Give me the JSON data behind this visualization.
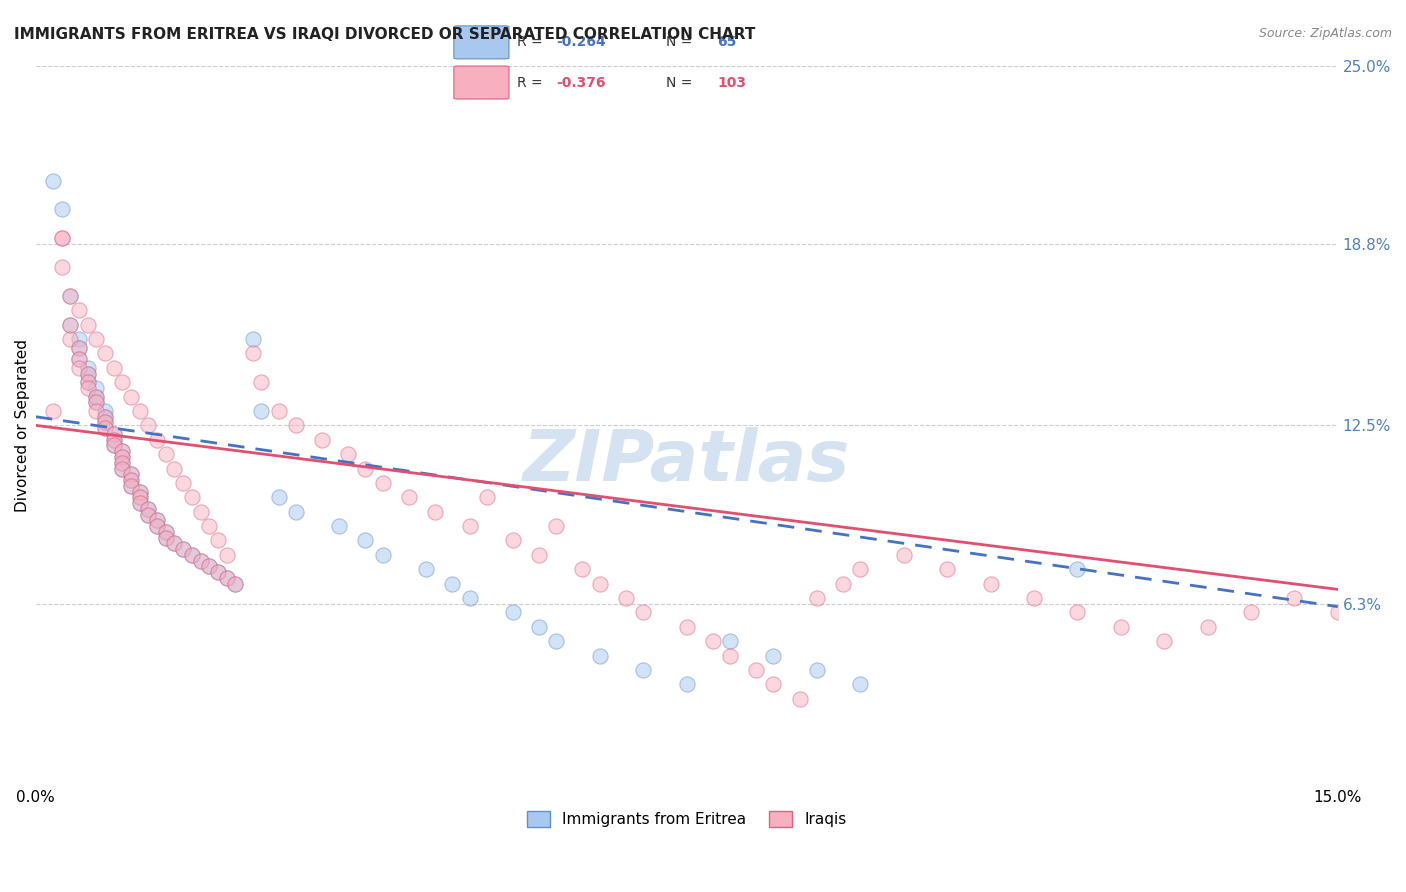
{
  "title": "IMMIGRANTS FROM ERITREA VS IRAQI DIVORCED OR SEPARATED CORRELATION CHART",
  "source": "Source: ZipAtlas.com",
  "xlabel_ticks": [
    "0.0%",
    "15.0%"
  ],
  "ylabel_ticks": [
    "6.3%",
    "12.5%",
    "18.8%",
    "25.0%"
  ],
  "ylabel_label": "Divorced or Separated",
  "xmin": 0.0,
  "xmax": 0.15,
  "ymin": 0.0,
  "ymax": 0.25,
  "ytick_positions": [
    0.063,
    0.125,
    0.188,
    0.25
  ],
  "ytick_labels": [
    "6.3%",
    "12.5%",
    "18.8%",
    "25.0%"
  ],
  "xtick_positions": [
    0.0,
    0.15
  ],
  "xtick_labels": [
    "0.0%",
    "15.0%"
  ],
  "legend_entries": [
    {
      "label": "R = -0.264   N =  65",
      "color": "#7ab0e0"
    },
    {
      "label": "R = -0.376   N = 103",
      "color": "#f08080"
    }
  ],
  "scatter_eritrea": {
    "color": "#a8c8f0",
    "edge_color": "#6090c8",
    "alpha": 0.5,
    "size": 120,
    "x": [
      0.002,
      0.003,
      0.004,
      0.004,
      0.005,
      0.005,
      0.005,
      0.006,
      0.006,
      0.006,
      0.007,
      0.007,
      0.007,
      0.008,
      0.008,
      0.008,
      0.008,
      0.009,
      0.009,
      0.009,
      0.01,
      0.01,
      0.01,
      0.01,
      0.011,
      0.011,
      0.011,
      0.012,
      0.012,
      0.012,
      0.013,
      0.013,
      0.014,
      0.014,
      0.015,
      0.015,
      0.016,
      0.017,
      0.018,
      0.019,
      0.02,
      0.021,
      0.022,
      0.023,
      0.025,
      0.026,
      0.028,
      0.03,
      0.035,
      0.038,
      0.04,
      0.045,
      0.048,
      0.05,
      0.055,
      0.058,
      0.06,
      0.065,
      0.07,
      0.075,
      0.08,
      0.085,
      0.09,
      0.095,
      0.12
    ],
    "y": [
      0.21,
      0.2,
      0.17,
      0.16,
      0.155,
      0.152,
      0.148,
      0.145,
      0.143,
      0.14,
      0.138,
      0.135,
      0.133,
      0.13,
      0.128,
      0.126,
      0.124,
      0.122,
      0.12,
      0.118,
      0.116,
      0.114,
      0.112,
      0.11,
      0.108,
      0.106,
      0.104,
      0.102,
      0.1,
      0.098,
      0.096,
      0.094,
      0.092,
      0.09,
      0.088,
      0.086,
      0.084,
      0.082,
      0.08,
      0.078,
      0.076,
      0.074,
      0.072,
      0.07,
      0.155,
      0.13,
      0.1,
      0.095,
      0.09,
      0.085,
      0.08,
      0.075,
      0.07,
      0.065,
      0.06,
      0.055,
      0.05,
      0.045,
      0.04,
      0.035,
      0.05,
      0.045,
      0.04,
      0.035,
      0.075
    ]
  },
  "scatter_iraqis": {
    "color": "#f8b0c0",
    "edge_color": "#e06080",
    "alpha": 0.5,
    "size": 120,
    "x": [
      0.002,
      0.003,
      0.003,
      0.004,
      0.004,
      0.005,
      0.005,
      0.005,
      0.006,
      0.006,
      0.006,
      0.007,
      0.007,
      0.007,
      0.008,
      0.008,
      0.008,
      0.009,
      0.009,
      0.009,
      0.01,
      0.01,
      0.01,
      0.01,
      0.011,
      0.011,
      0.011,
      0.012,
      0.012,
      0.012,
      0.013,
      0.013,
      0.014,
      0.014,
      0.015,
      0.015,
      0.016,
      0.017,
      0.018,
      0.019,
      0.02,
      0.021,
      0.022,
      0.023,
      0.025,
      0.026,
      0.028,
      0.03,
      0.033,
      0.036,
      0.038,
      0.04,
      0.043,
      0.046,
      0.05,
      0.052,
      0.055,
      0.058,
      0.06,
      0.063,
      0.065,
      0.068,
      0.07,
      0.075,
      0.078,
      0.08,
      0.083,
      0.085,
      0.088,
      0.09,
      0.093,
      0.095,
      0.1,
      0.105,
      0.11,
      0.115,
      0.12,
      0.125,
      0.13,
      0.135,
      0.14,
      0.145,
      0.15,
      0.003,
      0.004,
      0.005,
      0.006,
      0.007,
      0.008,
      0.009,
      0.01,
      0.011,
      0.012,
      0.013,
      0.014,
      0.015,
      0.016,
      0.017,
      0.018,
      0.019,
      0.02,
      0.021,
      0.022
    ],
    "y": [
      0.13,
      0.19,
      0.18,
      0.16,
      0.155,
      0.152,
      0.148,
      0.145,
      0.143,
      0.14,
      0.138,
      0.135,
      0.133,
      0.13,
      0.128,
      0.126,
      0.124,
      0.122,
      0.12,
      0.118,
      0.116,
      0.114,
      0.112,
      0.11,
      0.108,
      0.106,
      0.104,
      0.102,
      0.1,
      0.098,
      0.096,
      0.094,
      0.092,
      0.09,
      0.088,
      0.086,
      0.084,
      0.082,
      0.08,
      0.078,
      0.076,
      0.074,
      0.072,
      0.07,
      0.15,
      0.14,
      0.13,
      0.125,
      0.12,
      0.115,
      0.11,
      0.105,
      0.1,
      0.095,
      0.09,
      0.1,
      0.085,
      0.08,
      0.09,
      0.075,
      0.07,
      0.065,
      0.06,
      0.055,
      0.05,
      0.045,
      0.04,
      0.035,
      0.03,
      0.065,
      0.07,
      0.075,
      0.08,
      0.075,
      0.07,
      0.065,
      0.06,
      0.055,
      0.05,
      0.055,
      0.06,
      0.065,
      0.06,
      0.19,
      0.17,
      0.165,
      0.16,
      0.155,
      0.15,
      0.145,
      0.14,
      0.135,
      0.13,
      0.125,
      0.12,
      0.115,
      0.11,
      0.105,
      0.1,
      0.095,
      0.09,
      0.085,
      0.08
    ]
  },
  "trendline_eritrea": {
    "x": [
      0.0,
      0.15
    ],
    "y": [
      0.128,
      0.062
    ],
    "color": "#4472c4",
    "linewidth": 2.0,
    "linestyle": "--",
    "dashes": [
      6,
      4
    ]
  },
  "trendline_iraqis": {
    "x": [
      0.0,
      0.15
    ],
    "y": [
      0.125,
      0.068
    ],
    "color": "#e05070",
    "linewidth": 2.0,
    "linestyle": "-"
  },
  "watermark": "ZIPatlas",
  "watermark_color": "#d0dff0",
  "background_color": "#ffffff",
  "grid_color": "#cccccc",
  "title_fontsize": 11,
  "axis_label_fontsize": 11,
  "tick_fontsize": 11,
  "right_tick_color": "#5080c0"
}
